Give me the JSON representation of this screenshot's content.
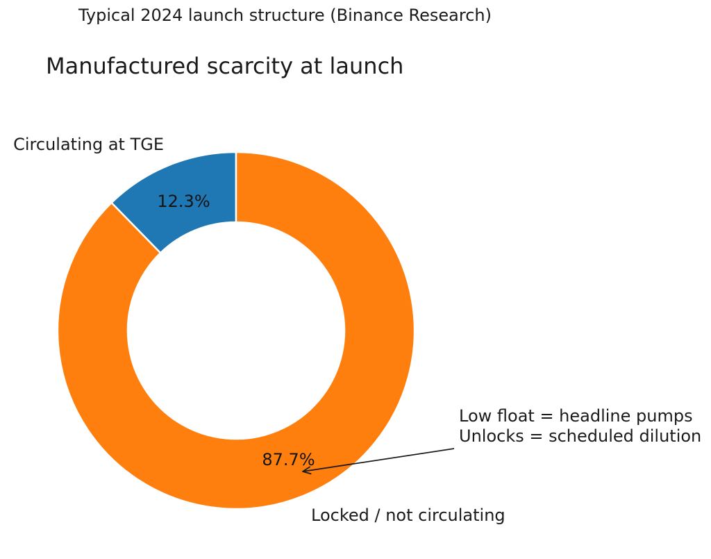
{
  "header": {
    "suptitle": "Typical 2024 launch structure (Binance Research)",
    "title": "Manufactured scarcity at launch"
  },
  "chart_data": {
    "type": "pie",
    "donut": true,
    "title": "Manufactured scarcity at launch",
    "suptitle": "Typical 2024 launch structure (Binance Research)",
    "start_angle": 90,
    "counterclock": true,
    "hole_ratio": 0.607,
    "pct_distance": 0.78,
    "background": "#ffffff",
    "legend": "none",
    "slices": [
      {
        "label": "Circulating at TGE",
        "value": 12.3,
        "pct_label": "12.3%",
        "color": "#1f77b4"
      },
      {
        "label": "Locked / not circulating",
        "value": 87.7,
        "pct_label": "87.7%",
        "color": "#ff7f0e"
      }
    ],
    "annotation": {
      "line1": "Low float = headline pumps",
      "line2": "Unlocks = scheduled dilution",
      "arrow_color": "#1a1a1a"
    }
  }
}
